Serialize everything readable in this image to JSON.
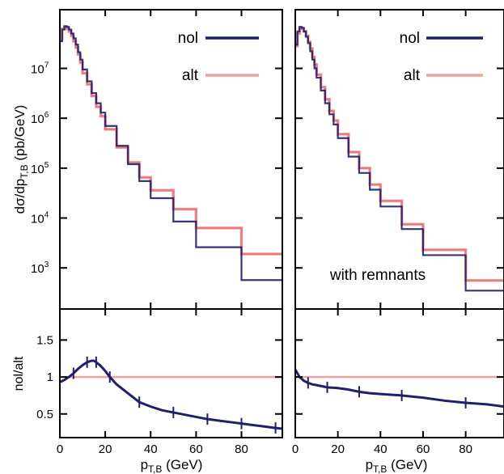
{
  "chart_data": {
    "type": "line",
    "colors": {
      "nol": "#1f1f6e",
      "alt": "#f5a0a0",
      "alt_mid": "#e8707a",
      "frame": "#000000",
      "ratio_ref": "#f5a0a0",
      "tick_ref": "#8b1a1a"
    },
    "ylabel_top": "dσ/dp",
    "ylabel_top_sub": "T,B",
    "ylabel_top_unit": " (pb/GeV)",
    "ylabel_bottom": "nol/alt",
    "xlabel": "p",
    "xlabel_sub": "T,B",
    "xlabel_unit": " (GeV)",
    "xlim": [
      0,
      98
    ],
    "ylim_top": [
      150,
      150000000
    ],
    "y_scale_top": "log",
    "ylim_bottom": [
      0.18,
      1.92
    ],
    "xtick_values": [
      0,
      20,
      40,
      60,
      80
    ],
    "xtick_labels": [
      "0",
      "20",
      "40",
      "60",
      "80"
    ],
    "ytick_top_values": [
      1000,
      10000,
      100000,
      1000000,
      10000000
    ],
    "ytick_top_bases": [
      "10",
      "10",
      "10",
      "10",
      "10"
    ],
    "ytick_top_exps": [
      "3",
      "4",
      "5",
      "6",
      "7"
    ],
    "ytick_bottom_values": [
      0.5,
      1,
      1.5
    ],
    "ytick_bottom_labels": [
      "0.5",
      "1",
      "1.5"
    ],
    "legend": [
      {
        "name": "nol"
      },
      {
        "name": "alt"
      }
    ],
    "panels": [
      {
        "annotation": "",
        "bin_edges": [
          0,
          1,
          2,
          3,
          4,
          5,
          6,
          7,
          8,
          9,
          10,
          12,
          14,
          16,
          18,
          20,
          25,
          30,
          35,
          40,
          50,
          60,
          80,
          100
        ],
        "series": [
          {
            "name": "nol",
            "values": [
              35000000,
              60000000,
              70000000,
              68000000,
              60000000,
              50000000,
              40000000,
              30000000,
              21000000,
              15000000,
              9500000,
              5500000,
              3200000,
              2000000,
              1300000,
              700000,
              280000,
              120000,
              55000,
              25000,
              8500,
              2600,
              570
            ]
          },
          {
            "name": "alt",
            "values": [
              38000000,
              62000000,
              68000000,
              62000000,
              55000000,
              45000000,
              35000000,
              26000000,
              19000000,
              13000000,
              8000000,
              4800000,
              2800000,
              1700000,
              1100000,
              600000,
              260000,
              130000,
              65000,
              36000,
              15000,
              6300,
              1900
            ]
          }
        ],
        "ratio": {
          "x": [
            0,
            2,
            4,
            6,
            8,
            10,
            12,
            14,
            15,
            16,
            18,
            20,
            22,
            25,
            30,
            35,
            40,
            45,
            50,
            55,
            60,
            65,
            70,
            75,
            80,
            85,
            90,
            95,
            98
          ],
          "y": [
            0.93,
            0.96,
            1.0,
            1.05,
            1.11,
            1.16,
            1.2,
            1.22,
            1.22,
            1.2,
            1.15,
            1.08,
            1.0,
            0.9,
            0.78,
            0.66,
            0.6,
            0.55,
            0.52,
            0.49,
            0.46,
            0.43,
            0.41,
            0.39,
            0.37,
            0.35,
            0.33,
            0.31,
            0.3
          ]
        }
      },
      {
        "annotation": "with remnants",
        "bin_edges": [
          0,
          1,
          2,
          3,
          4,
          5,
          6,
          7,
          8,
          9,
          10,
          12,
          14,
          16,
          18,
          20,
          25,
          30,
          35,
          40,
          50,
          60,
          80,
          100
        ],
        "series": [
          {
            "name": "nol",
            "values": [
              30000000,
              55000000,
              68000000,
              65000000,
              55000000,
              43000000,
              32000000,
              22000000,
              15000000,
              10000000,
              6500000,
              3600000,
              2000000,
              1200000,
              750000,
              400000,
              170000,
              80000,
              37000,
              17000,
              6000,
              1800,
              350
            ]
          },
          {
            "name": "alt",
            "values": [
              28000000,
              50000000,
              63000000,
              62000000,
              55000000,
              45000000,
              34000000,
              25000000,
              17000000,
              12000000,
              7500000,
              4200000,
              2400000,
              1400000,
              900000,
              480000,
              210000,
              100000,
              47000,
              22000,
              7500,
              2300,
              560
            ]
          }
        ],
        "ratio": {
          "x": [
            0,
            2,
            4,
            6,
            8,
            10,
            15,
            20,
            25,
            30,
            35,
            40,
            50,
            60,
            70,
            80,
            90,
            98
          ],
          "y": [
            1.1,
            1.0,
            0.95,
            0.92,
            0.9,
            0.89,
            0.86,
            0.85,
            0.83,
            0.8,
            0.78,
            0.77,
            0.75,
            0.72,
            0.68,
            0.65,
            0.63,
            0.6
          ]
        }
      }
    ]
  }
}
